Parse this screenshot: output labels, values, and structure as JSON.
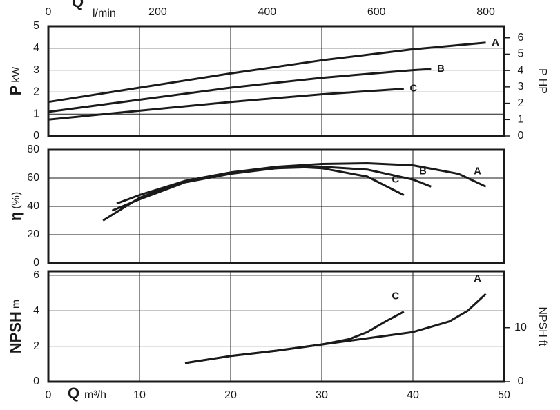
{
  "chart_data": [
    {
      "type": "line",
      "ylabel": "P",
      "yunit": "kW",
      "y2label": "P",
      "y2unit": "HP",
      "x2label": "Q",
      "x2unit": "l/min",
      "x2lim": [
        0,
        833.33
      ],
      "x2ticks": [
        0,
        200,
        400,
        600,
        800
      ],
      "ylim": [
        0,
        5
      ],
      "yticks": [
        0,
        1,
        2,
        3,
        4,
        5
      ],
      "y2lim": [
        0,
        6.705
      ],
      "y2ticks": [
        0,
        1,
        2,
        3,
        4,
        5,
        6
      ],
      "grid": true,
      "series": [
        {
          "name": "A",
          "color": "#1a1a1a",
          "x": [
            0,
            10,
            20,
            30,
            40,
            48
          ],
          "values": [
            1.55,
            2.2,
            2.85,
            3.45,
            3.95,
            4.25
          ]
        },
        {
          "name": "B",
          "color": "#1a1a1a",
          "x": [
            0,
            10,
            20,
            30,
            40,
            42
          ],
          "values": [
            1.1,
            1.65,
            2.2,
            2.65,
            3.0,
            3.05
          ]
        },
        {
          "name": "C",
          "color": "#1a1a1a",
          "x": [
            0,
            10,
            20,
            30,
            39
          ],
          "values": [
            0.75,
            1.15,
            1.55,
            1.9,
            2.15
          ]
        }
      ]
    },
    {
      "type": "line",
      "ylabel": "η",
      "yunit": "(%)",
      "ylim": [
        0,
        80
      ],
      "yticks": [
        0,
        20,
        40,
        60,
        80
      ],
      "grid": true,
      "series": [
        {
          "name": "A",
          "color": "#1a1a1a",
          "x": [
            6,
            10,
            15,
            20,
            25,
            30,
            35,
            40,
            45,
            48
          ],
          "values": [
            30,
            46,
            58,
            64,
            68,
            70,
            70.5,
            69,
            63,
            54
          ]
        },
        {
          "name": "B",
          "color": "#1a1a1a",
          "x": [
            7,
            10,
            15,
            20,
            25,
            30,
            35,
            40,
            42
          ],
          "values": [
            37,
            45,
            57,
            63,
            67,
            68,
            66,
            59,
            54
          ]
        },
        {
          "name": "C",
          "color": "#1a1a1a",
          "x": [
            7.5,
            10,
            15,
            20,
            25,
            27,
            30,
            35,
            39
          ],
          "values": [
            42,
            48,
            58,
            64,
            67,
            68,
            67,
            61,
            48
          ]
        }
      ]
    },
    {
      "type": "line",
      "ylabel": "NPSH",
      "yunit": "m",
      "y2label": "NPSH",
      "y2unit": "ft",
      "xlabel": "Q",
      "xunit": "m³/h",
      "xlim": [
        0,
        50
      ],
      "xticks": [
        0,
        10,
        20,
        30,
        40,
        50
      ],
      "ylim": [
        0,
        6.23
      ],
      "yticks": [
        0,
        2,
        4,
        6
      ],
      "y2lim": [
        0,
        20.44
      ],
      "y2ticks": [
        0,
        10
      ],
      "grid": true,
      "series": [
        {
          "name": "A",
          "color": "#1a1a1a",
          "x": [
            15,
            20,
            25,
            30,
            35,
            40,
            44,
            46,
            48
          ],
          "values": [
            1.05,
            1.45,
            1.75,
            2.1,
            2.45,
            2.8,
            3.4,
            4.0,
            4.95
          ]
        },
        {
          "name": "C",
          "color": "#1a1a1a",
          "x": [
            15,
            20,
            25,
            30,
            33,
            35,
            37,
            39
          ],
          "values": [
            1.05,
            1.45,
            1.75,
            2.1,
            2.4,
            2.8,
            3.4,
            3.95
          ]
        }
      ]
    }
  ]
}
